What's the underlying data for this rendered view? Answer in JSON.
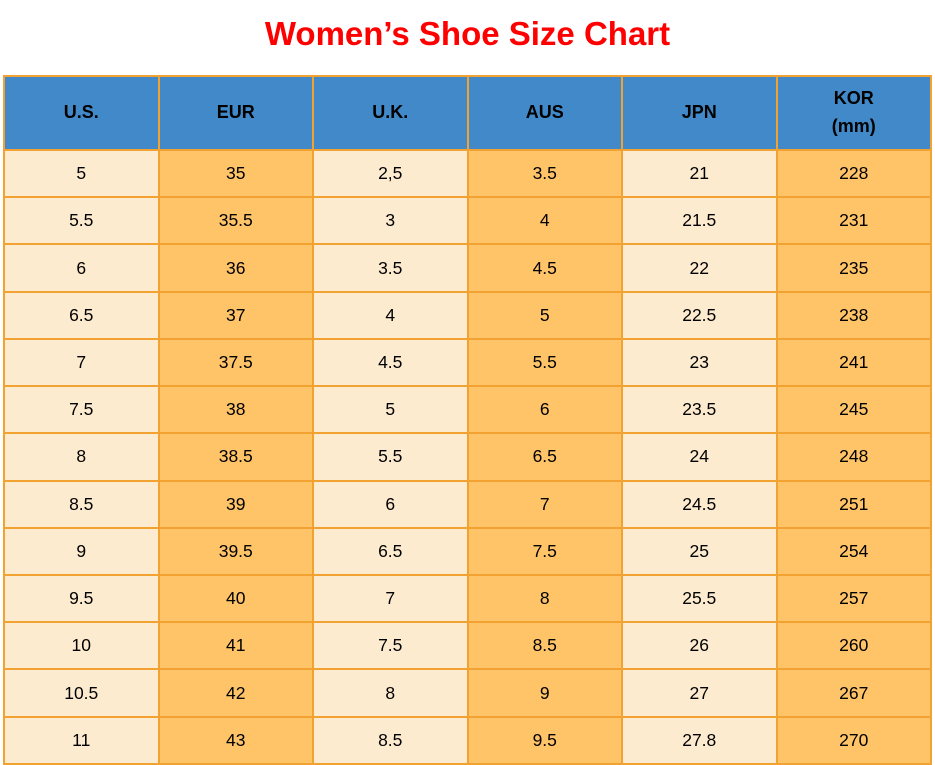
{
  "title": "Women’s Shoe Size Chart",
  "colors": {
    "title_text": "#ff0000",
    "header_bg": "#4189c8",
    "header_text": "#000000",
    "cell_border": "#f2a231",
    "column_light": "#fdebd0",
    "column_orange": "#ffc368",
    "cell_text": "#000000"
  },
  "chart_data": {
    "type": "table",
    "title": "Women’s Shoe Size Chart",
    "columns": [
      "U.S.",
      "EUR",
      "U.K.",
      "AUS",
      "JPN",
      "KOR\n(mm)"
    ],
    "column_keys": [
      "us",
      "eur",
      "uk",
      "aus",
      "jpn",
      "kor"
    ],
    "rows": [
      [
        "5",
        "35",
        "2,5",
        "3.5",
        "21",
        "228"
      ],
      [
        "5.5",
        "35.5",
        "3",
        "4",
        "21.5",
        "231"
      ],
      [
        "6",
        "36",
        "3.5",
        "4.5",
        "22",
        "235"
      ],
      [
        "6.5",
        "37",
        "4",
        "5",
        "22.5",
        "238"
      ],
      [
        "7",
        "37.5",
        "4.5",
        "5.5",
        "23",
        "241"
      ],
      [
        "7.5",
        "38",
        "5",
        "6",
        "23.5",
        "245"
      ],
      [
        "8",
        "38.5",
        "5.5",
        "6.5",
        "24",
        "248"
      ],
      [
        "8.5",
        "39",
        "6",
        "7",
        "24.5",
        "251"
      ],
      [
        "9",
        "39.5",
        "6.5",
        "7.5",
        "25",
        "254"
      ],
      [
        "9.5",
        "40",
        "7",
        "8",
        "25.5",
        "257"
      ],
      [
        "10",
        "41",
        "7.5",
        "8.5",
        "26",
        "260"
      ],
      [
        "10.5",
        "42",
        "8",
        "9",
        "27",
        "267"
      ],
      [
        "11",
        "43",
        "8.5",
        "9.5",
        "27.8",
        "270"
      ]
    ]
  }
}
